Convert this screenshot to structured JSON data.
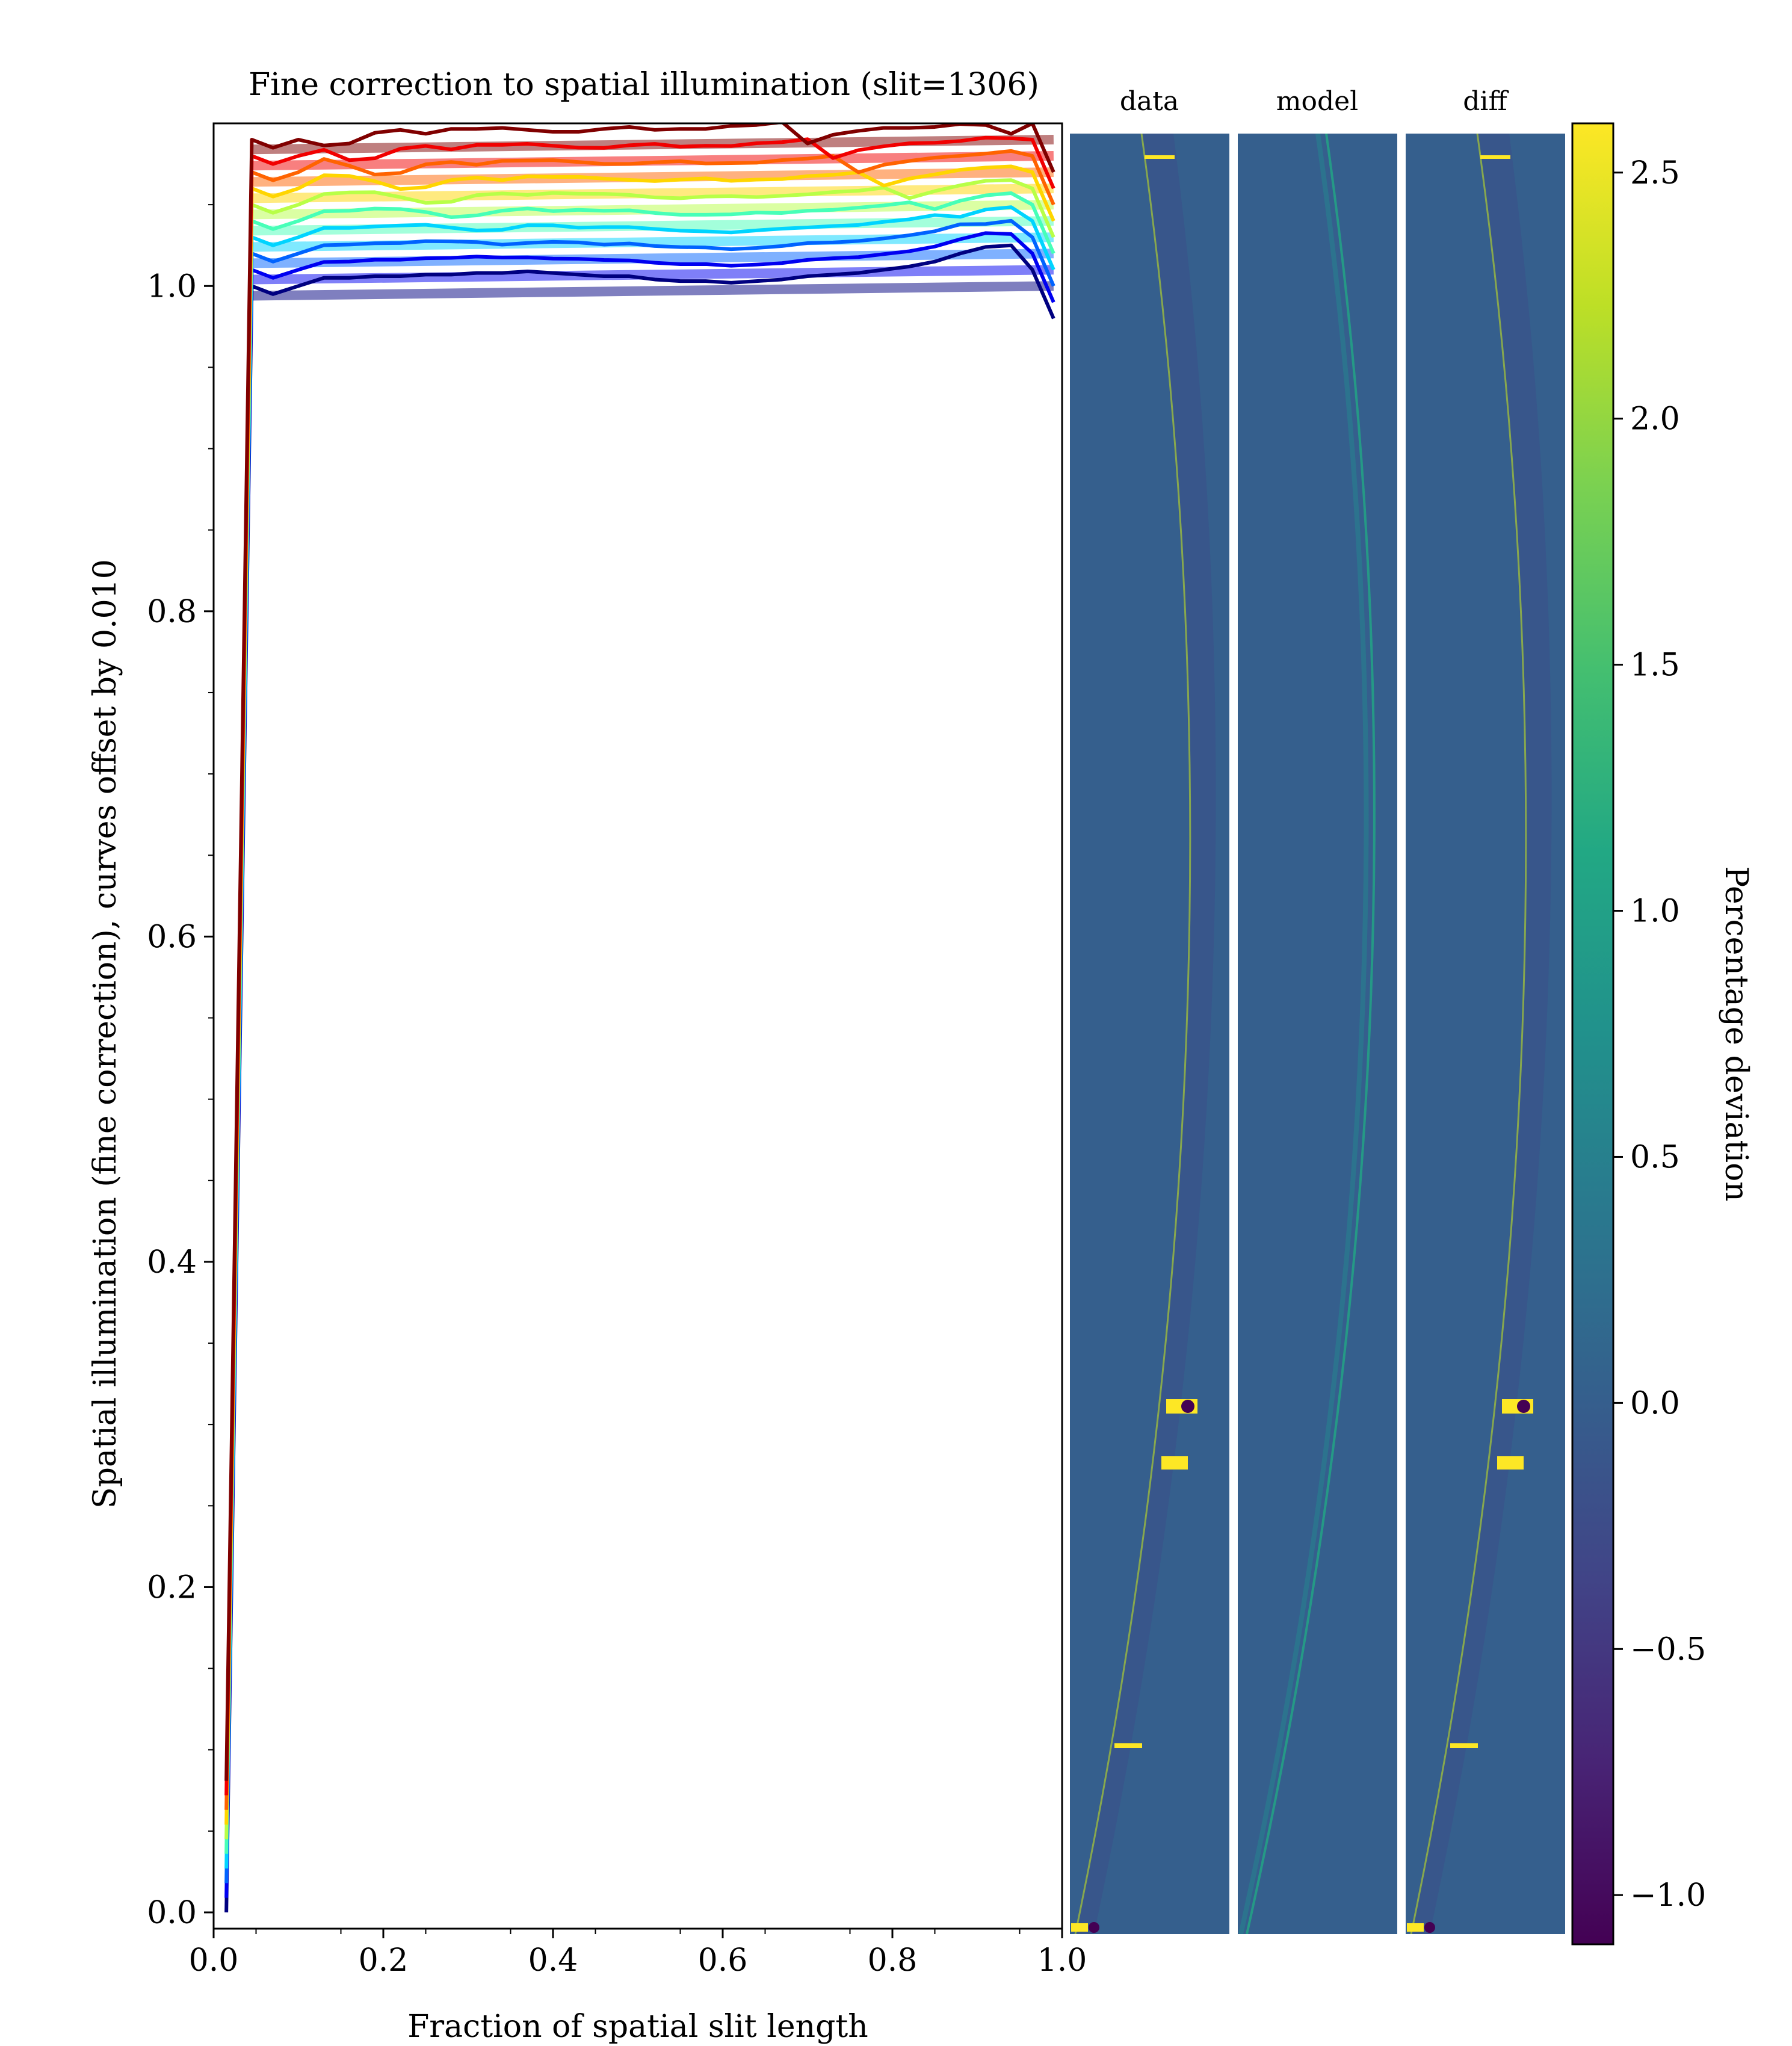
{
  "chart_data": {
    "type": "line",
    "title": "Fine correction to spatial illumination (slit=1306)",
    "xlabel": "Fraction of spatial slit length",
    "ylabel": "Spatial illumination (fine correction), curves offset by 0.010",
    "xlim": [
      0.0,
      1.0
    ],
    "ylim": [
      -0.01,
      1.1
    ],
    "x_ticks": [
      "0.0",
      "0.2",
      "0.4",
      "0.6",
      "0.8",
      "1.0"
    ],
    "x_tick_values": [
      0.0,
      0.2,
      0.4,
      0.6,
      0.8,
      1.0
    ],
    "y_ticks": [
      "0.0",
      "0.2",
      "0.4",
      "0.6",
      "0.8",
      "1.0"
    ],
    "y_tick_values": [
      0.0,
      0.2,
      0.4,
      0.6,
      0.8,
      1.0
    ],
    "grid": false,
    "curve_offset": 0.01,
    "n_curves": 10,
    "colormap_lines": "jet",
    "x_edge": [
      0.015,
      0.045,
      0.07,
      0.1
    ],
    "x_interior": [
      0.13,
      0.16,
      0.19,
      0.22,
      0.25,
      0.28,
      0.31,
      0.34,
      0.37,
      0.4,
      0.43,
      0.46,
      0.49,
      0.52,
      0.55,
      0.58,
      0.61,
      0.64,
      0.67,
      0.7,
      0.73,
      0.76,
      0.79,
      0.82,
      0.85,
      0.88,
      0.91,
      0.94
    ],
    "x_end": [
      0.965,
      0.99
    ],
    "edge_shape": [
      -0.99,
      0.0,
      -0.005,
      0.0
    ],
    "end_shape": [
      0.01,
      -0.02
    ],
    "residual_curve0": [
      0.005,
      0.005,
      0.006,
      0.006,
      0.007,
      0.007,
      0.008,
      0.008,
      0.009,
      0.008,
      0.007,
      0.006,
      0.006,
      0.004,
      0.003,
      0.003,
      0.002,
      0.003,
      0.004,
      0.006,
      0.007,
      0.008,
      0.01,
      0.012,
      0.015,
      0.02,
      0.024,
      0.025
    ],
    "residual_curve1": [
      -0.004,
      0.005,
      0.009,
      0.012,
      0.012,
      0.013,
      0.016,
      0.015,
      0.006,
      -0.006,
      -0.004,
      0.007,
      0.01,
      0.006,
      0.011,
      0.011,
      0.012,
      0.01,
      0.008,
      0.008,
      0.011,
      0.013,
      0.01,
      0.011,
      0.011,
      0.014,
      0.015,
      0.018
    ],
    "model_level": 1.0,
    "model_levels": [
      0.994,
      1.004,
      1.014,
      1.024,
      1.034,
      1.044,
      1.054,
      1.064,
      1.074,
      1.084,
      1.094
    ],
    "model_line_alpha": 0.5,
    "colorbar": {
      "label": "Percentage deviation",
      "colormap": "viridis",
      "range": [
        -1.1,
        2.6
      ],
      "ticks": [
        "−1.0",
        "−0.5",
        "0.0",
        "0.5",
        "1.0",
        "1.5",
        "2.0",
        "2.5"
      ],
      "tick_values": [
        -1.0,
        -0.5,
        0.0,
        0.5,
        1.0,
        1.5,
        2.0,
        2.5
      ]
    },
    "panels": [
      {
        "title": "data"
      },
      {
        "title": "model"
      },
      {
        "title": "diff"
      }
    ],
    "panel_background": "#355f8d"
  }
}
